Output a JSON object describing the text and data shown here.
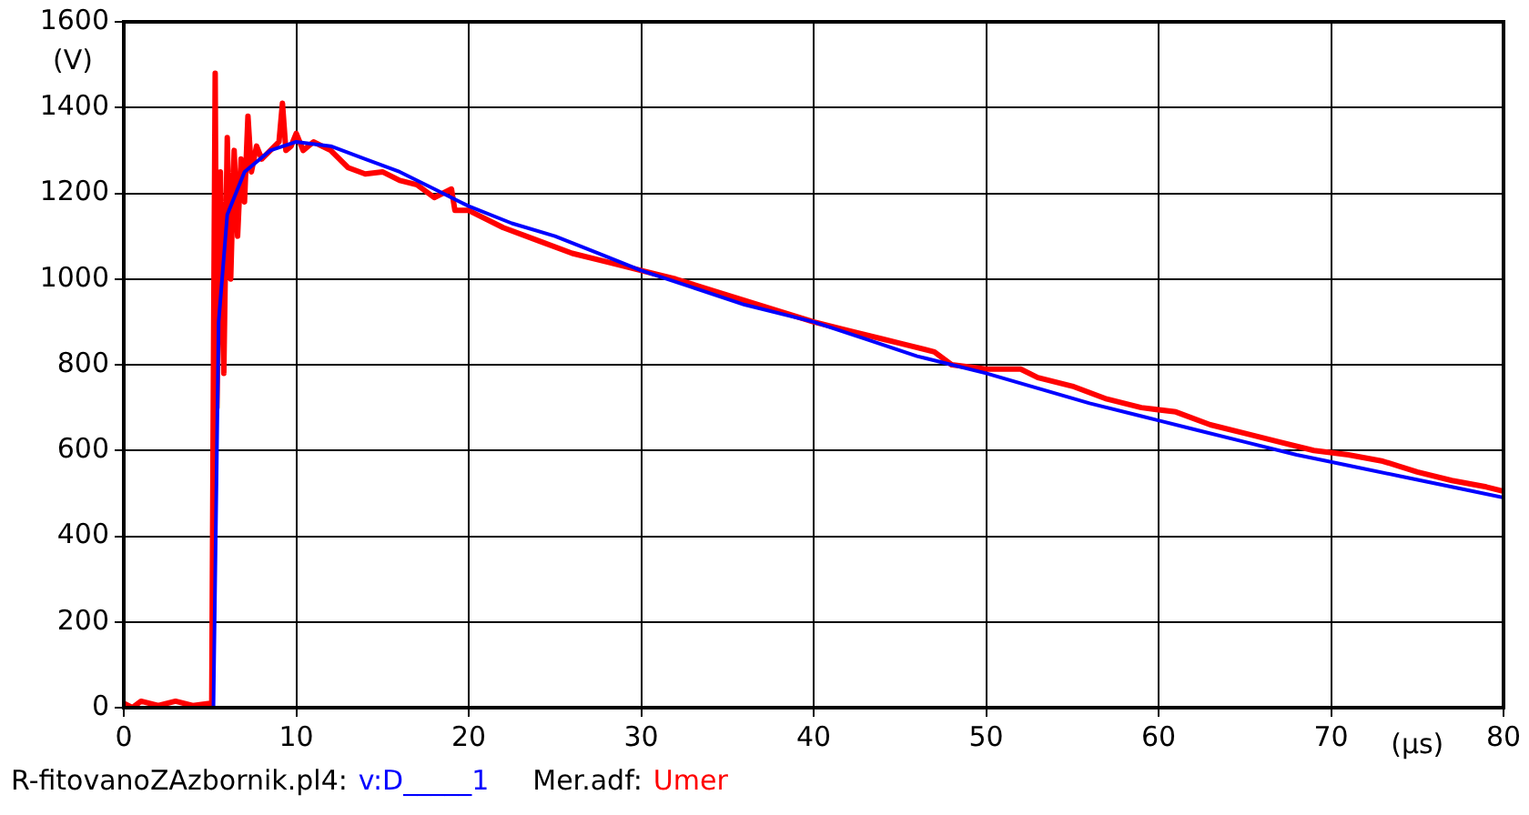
{
  "chart_data": {
    "type": "line",
    "xlabel": "(µs)",
    "ylabel": "(V)",
    "xlim": [
      0,
      80
    ],
    "xticks": [
      0,
      10,
      20,
      30,
      40,
      50,
      60,
      70,
      80
    ],
    "ylim": [
      0,
      1600
    ],
    "yticks": [
      0,
      200,
      400,
      600,
      800,
      1000,
      1200,
      1400,
      1600
    ],
    "grid": true,
    "legend": "bottom left",
    "marker": "none",
    "line_style": "solid",
    "annotations": [
      "R-fitovanoZAzbornik.pl4:",
      "Mer.adf:"
    ],
    "series": [
      {
        "name": "v:D_____1",
        "color": "#0000ff",
        "x": [
          5.2,
          5.5,
          6,
          7,
          8.5,
          10,
          12,
          14,
          16,
          18,
          20,
          22.5,
          25,
          27.5,
          30,
          33,
          36,
          40,
          43,
          46,
          50,
          53,
          56,
          59,
          62,
          65,
          68,
          71,
          74,
          77,
          80
        ],
        "values": [
          0,
          900,
          1150,
          1250,
          1300,
          1320,
          1310,
          1280,
          1250,
          1210,
          1170,
          1130,
          1100,
          1060,
          1020,
          980,
          940,
          900,
          860,
          820,
          780,
          745,
          710,
          680,
          650,
          620,
          590,
          565,
          540,
          515,
          490
        ]
      },
      {
        "name": "Umer",
        "color": "#ff0000",
        "x": [
          0,
          0.5,
          1,
          2,
          3,
          4,
          5,
          5.1,
          5.2,
          5.3,
          5.4,
          5.6,
          5.8,
          6,
          6.2,
          6.4,
          6.6,
          6.8,
          7,
          7.2,
          7.4,
          7.7,
          8,
          8.5,
          9,
          9.2,
          9.4,
          9.7,
          10,
          10.4,
          11,
          12,
          13,
          14,
          15,
          16,
          17,
          18,
          19,
          19.2,
          20,
          22,
          24,
          26,
          28,
          30,
          32,
          34,
          36,
          38,
          40,
          42,
          44,
          45,
          47,
          48,
          50,
          52,
          53,
          54,
          55,
          57,
          59,
          61,
          63,
          65,
          67,
          69,
          71,
          73,
          75,
          77,
          79,
          80
        ],
        "values": [
          10,
          0,
          15,
          5,
          15,
          5,
          10,
          0,
          800,
          1480,
          700,
          1250,
          780,
          1330,
          1000,
          1300,
          1100,
          1280,
          1180,
          1380,
          1250,
          1310,
          1280,
          1300,
          1320,
          1410,
          1300,
          1310,
          1340,
          1300,
          1320,
          1300,
          1260,
          1245,
          1250,
          1230,
          1220,
          1190,
          1210,
          1160,
          1160,
          1120,
          1090,
          1060,
          1040,
          1020,
          1000,
          975,
          950,
          925,
          900,
          880,
          860,
          850,
          830,
          800,
          790,
          790,
          770,
          760,
          750,
          720,
          700,
          690,
          660,
          640,
          620,
          600,
          590,
          575,
          550,
          530,
          515,
          505
        ]
      }
    ]
  }
}
